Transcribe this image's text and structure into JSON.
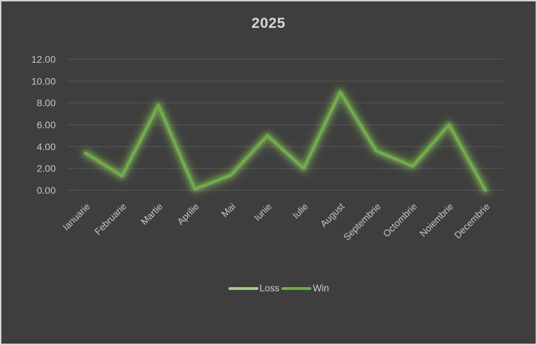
{
  "frame": {
    "background": "#3e3e3e",
    "border_color": "#d4d4d4"
  },
  "chart_data": {
    "type": "line",
    "title": "2025",
    "categories": [
      "Ianuarie",
      "Februarie",
      "Martie",
      "Aprilie",
      "Mai",
      "Iunie",
      "Iulie",
      "August",
      "Septembrie",
      "Octombrie",
      "Noiembrie",
      "Decembrie"
    ],
    "series": [
      {
        "name": "Loss",
        "color": "#a9cc8e",
        "values": []
      },
      {
        "name": "Win",
        "color": "#6fad47",
        "glow_color": "#8ec95f",
        "values": [
          3.4,
          1.3,
          7.8,
          0.1,
          1.4,
          5.0,
          2.0,
          9.0,
          3.6,
          2.2,
          6.0,
          0.0
        ]
      }
    ],
    "xlabel": "",
    "ylabel": "",
    "ylim": [
      0,
      12
    ],
    "ytick_step": 2,
    "ytick_decimals": 2,
    "grid": "horizontal",
    "legend_position": "bottom",
    "styles": {
      "text_color": "#c6c6c6",
      "title_color": "#d6d6d6",
      "gridline_color": "#575757"
    }
  }
}
